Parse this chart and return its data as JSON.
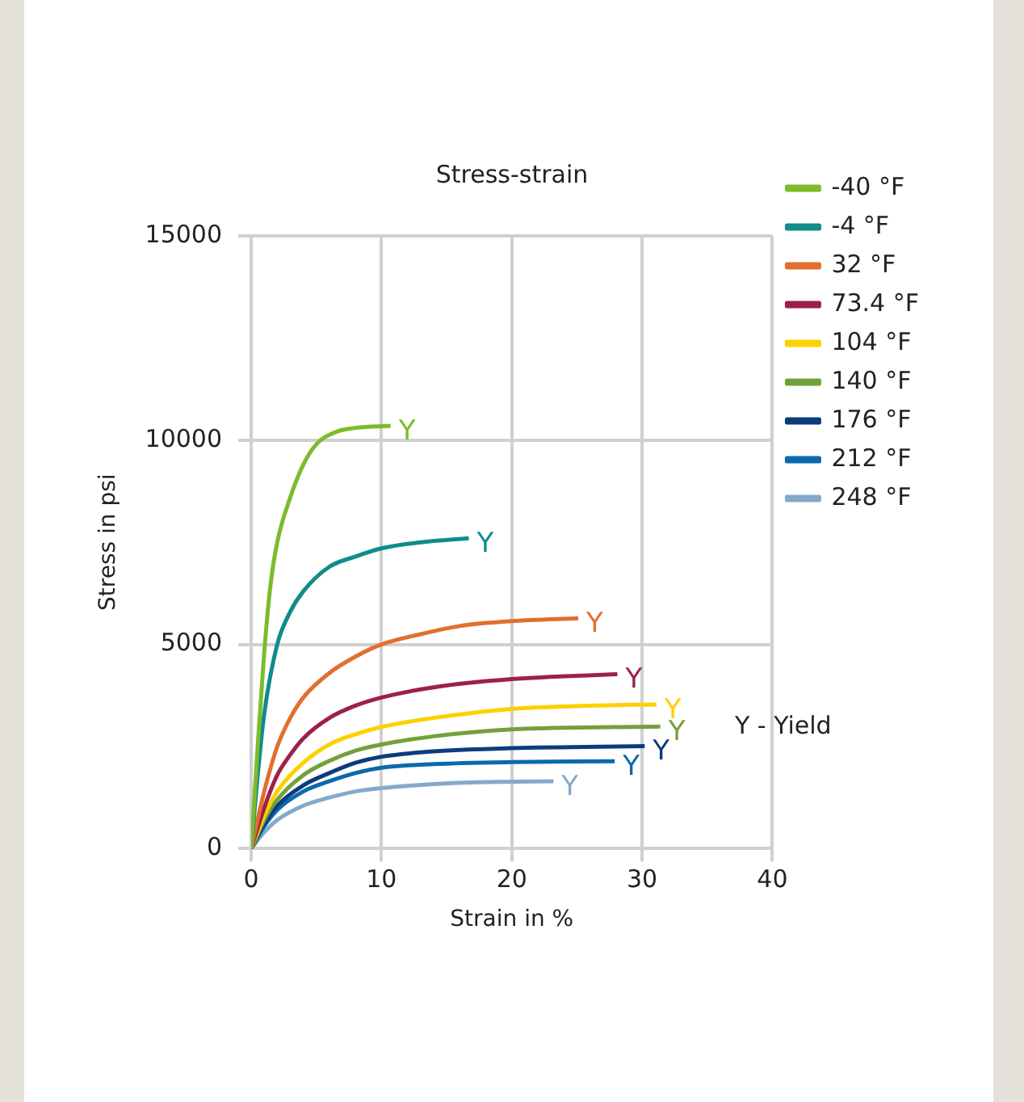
{
  "chart_data": {
    "type": "line",
    "title": "Stress-strain",
    "xlabel": "Strain in %",
    "ylabel": "Stress in psi",
    "xlim": [
      0,
      40
    ],
    "xticks": [
      0,
      10,
      20,
      30,
      40
    ],
    "ylim": [
      0,
      15000
    ],
    "yticks": [
      0,
      5000,
      10000,
      15000
    ],
    "grid": true,
    "legend": "right",
    "series": [
      {
        "name": "-40 °F",
        "color": "#7dbb2b",
        "x": [
          0,
          0.5,
          1,
          1.5,
          2,
          3,
          4,
          5,
          6.5,
          8,
          10.7
        ],
        "values": [
          0,
          2500,
          4800,
          6500,
          7500,
          8600,
          9400,
          9900,
          10200,
          10300,
          10350
        ]
      },
      {
        "name": "-4 °F",
        "color": "#0f8c8c",
        "x": [
          0,
          0.5,
          1,
          2,
          3,
          4,
          6,
          8,
          10,
          13,
          16.7
        ],
        "values": [
          0,
          1800,
          3300,
          5000,
          5800,
          6300,
          6900,
          7150,
          7350,
          7500,
          7600
        ]
      },
      {
        "name": "32 °F",
        "color": "#e26f2e",
        "x": [
          0,
          1,
          2,
          3,
          4,
          6,
          8,
          10,
          13,
          16,
          20,
          25.1
        ],
        "values": [
          0,
          1400,
          2500,
          3200,
          3700,
          4300,
          4700,
          5000,
          5250,
          5450,
          5570,
          5640
        ]
      },
      {
        "name": "73.4 °F",
        "color": "#9c2148",
        "x": [
          0,
          1,
          2,
          3,
          4,
          6,
          8,
          10,
          14,
          20,
          28.1
        ],
        "values": [
          0,
          1000,
          1800,
          2300,
          2700,
          3200,
          3500,
          3700,
          3950,
          4150,
          4270
        ]
      },
      {
        "name": "104 °F",
        "color": "#fcd100",
        "x": [
          0,
          1,
          2,
          4,
          6,
          8,
          10,
          14,
          20,
          26,
          31.1
        ],
        "values": [
          0,
          800,
          1400,
          2100,
          2550,
          2800,
          2980,
          3200,
          3420,
          3500,
          3530
        ]
      },
      {
        "name": "140 °F",
        "color": "#74a03c",
        "x": [
          0,
          1,
          2,
          4,
          6,
          8,
          10,
          14,
          20,
          31.4
        ],
        "values": [
          0,
          700,
          1200,
          1800,
          2150,
          2400,
          2550,
          2750,
          2920,
          2990
        ]
      },
      {
        "name": "176 °F",
        "color": "#0b3d7c",
        "x": [
          0,
          1,
          2,
          4,
          6,
          8,
          10,
          14,
          20,
          30.2
        ],
        "values": [
          0,
          600,
          1050,
          1550,
          1850,
          2100,
          2250,
          2380,
          2460,
          2510
        ]
      },
      {
        "name": "212 °F",
        "color": "#0a6aab",
        "x": [
          0,
          1,
          2,
          4,
          6,
          8,
          10,
          14,
          20,
          27.9
        ],
        "values": [
          0,
          550,
          950,
          1400,
          1650,
          1850,
          1980,
          2070,
          2120,
          2140
        ]
      },
      {
        "name": "248 °F",
        "color": "#85a9cc",
        "x": [
          0,
          1,
          2,
          4,
          6,
          8,
          10,
          14,
          18,
          23.2
        ],
        "values": [
          0,
          400,
          700,
          1050,
          1250,
          1400,
          1480,
          1580,
          1630,
          1650
        ]
      }
    ],
    "annotations": [
      {
        "text": "Y",
        "x": 10.7,
        "y": 10350
      },
      {
        "text": "Y",
        "x": 16.7,
        "y": 7600
      },
      {
        "text": "Y",
        "x": 25.1,
        "y": 5640
      },
      {
        "text": "Y",
        "x": 28.1,
        "y": 4270
      },
      {
        "text": "Y",
        "x": 31.1,
        "y": 3530
      },
      {
        "text": "Y",
        "x": 31.4,
        "y": 2990
      },
      {
        "text": "Y",
        "x": 30.2,
        "y": 2510
      },
      {
        "text": "Y",
        "x": 27.9,
        "y": 2140
      },
      {
        "text": "Y",
        "x": 23.2,
        "y": 1650
      },
      "Y - Yield"
    ]
  }
}
